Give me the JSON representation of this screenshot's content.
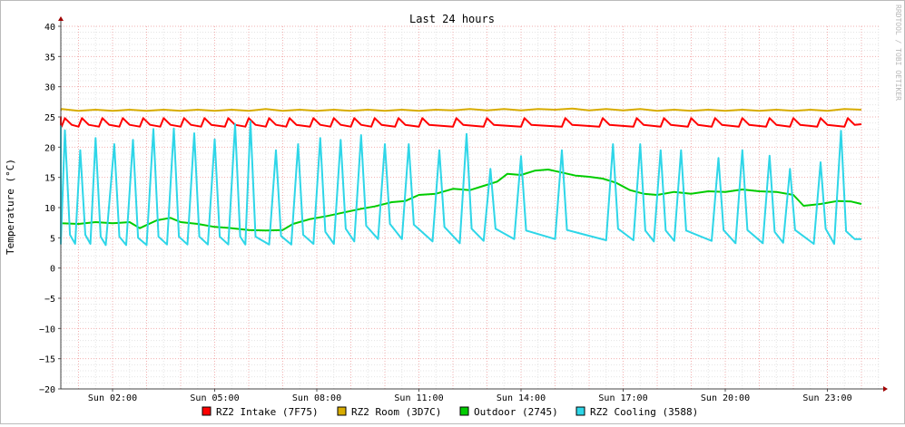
{
  "chart_data": {
    "type": "line",
    "title": "Last 24 hours",
    "ylabel": "Temperature (°C)",
    "watermark": "RRDTOOL / TOBI OETIKER",
    "ylim": [
      -20,
      40
    ],
    "y_ticks": [
      "40",
      "35",
      "30",
      "25",
      "20",
      "15",
      "10",
      "5",
      "0",
      "−5",
      "−10",
      "−15",
      "−20"
    ],
    "xlim_hours": [
      0,
      24
    ],
    "x_ticks": [
      {
        "label": "Sun 02:00",
        "hour": 2
      },
      {
        "label": "Sun 05:00",
        "hour": 5
      },
      {
        "label": "Sun 08:00",
        "hour": 8
      },
      {
        "label": "Sun 11:00",
        "hour": 11
      },
      {
        "label": "Sun 14:00",
        "hour": 14
      },
      {
        "label": "Sun 17:00",
        "hour": 17
      },
      {
        "label": "Sun 20:00",
        "hour": 20
      },
      {
        "label": "Sun 23:00",
        "hour": 23
      }
    ],
    "grid": true,
    "legend_position": "bottom",
    "series": [
      {
        "name": "RZ2 Intake (7F75)",
        "color": "#ff0000",
        "x": [
          0,
          0.1,
          0.3,
          0.5,
          0.6,
          0.8,
          1.0,
          1.1,
          1.3,
          1.6,
          1.7,
          1.9,
          2.2,
          2.3,
          2.5,
          2.8,
          2.9,
          3.1,
          3.4,
          3.5,
          3.7,
          4.0,
          4.1,
          4.3,
          4.6,
          4.7,
          4.9,
          5.3,
          5.4,
          5.6,
          5.9,
          6.0,
          6.2,
          6.5,
          6.6,
          6.8,
          7.1,
          7.2,
          7.4,
          7.8,
          7.9,
          8.1,
          8.4,
          8.5,
          8.7,
          9.0,
          9.1,
          9.3,
          9.6,
          9.7,
          9.9,
          10.3,
          10.4,
          10.6,
          11.0,
          11.1,
          11.3,
          12.0,
          12.1,
          12.3,
          12.9,
          13.0,
          13.2,
          14.0,
          14.1,
          14.3,
          15.2,
          15.3,
          15.5,
          16.3,
          16.4,
          16.6,
          17.3,
          17.4,
          17.6,
          18.1,
          18.2,
          18.4,
          18.9,
          19.0,
          19.2,
          19.6,
          19.7,
          19.9,
          20.4,
          20.5,
          20.7,
          21.2,
          21.3,
          21.5,
          21.9,
          22.0,
          22.2,
          22.7,
          22.8,
          23.0,
          23.5,
          23.6,
          23.8,
          24.0
        ],
        "y": [
          23.5,
          25,
          23.8,
          23.4,
          24.8,
          23.7,
          23.4,
          24.8,
          23.7,
          23.4,
          24.8,
          23.7,
          23.4,
          24.8,
          23.7,
          23.4,
          24.8,
          23.7,
          23.4,
          24.8,
          23.7,
          23.4,
          24.8,
          23.7,
          23.4,
          24.8,
          23.7,
          23.4,
          24.8,
          23.7,
          23.4,
          24.8,
          23.7,
          23.4,
          24.8,
          23.7,
          23.4,
          24.8,
          23.7,
          23.4,
          24.8,
          23.7,
          23.4,
          24.8,
          23.7,
          23.4,
          24.8,
          23.7,
          23.4,
          24.8,
          23.7,
          23.4,
          24.8,
          23.7,
          23.4,
          24.8,
          23.7,
          23.4,
          24.8,
          23.7,
          23.4,
          24.8,
          23.7,
          23.4,
          24.8,
          23.7,
          23.4,
          24.8,
          23.7,
          23.4,
          24.8,
          23.7,
          23.4,
          24.8,
          23.7,
          23.4,
          24.8,
          23.7,
          23.4,
          24.8,
          23.7,
          23.4,
          24.8,
          23.7,
          23.4,
          24.8,
          23.7,
          23.4,
          24.8,
          23.7,
          23.4,
          24.8,
          23.7,
          23.4,
          24.8,
          23.7,
          23.4,
          24.8,
          23.7,
          23.8
        ]
      },
      {
        "name": "RZ2 Room (3D7C)",
        "color": "#d8ac00",
        "x": [
          0,
          0.5,
          1,
          1.5,
          2,
          2.5,
          3,
          3.5,
          4,
          4.5,
          5,
          5.5,
          6,
          6.5,
          7,
          7.5,
          8,
          8.5,
          9,
          9.5,
          10,
          10.5,
          11,
          11.5,
          12,
          12.5,
          13,
          13.5,
          14,
          14.5,
          15,
          15.5,
          16,
          16.5,
          17,
          17.5,
          18,
          18.5,
          19,
          19.5,
          20,
          20.5,
          21,
          21.5,
          22,
          22.5,
          23,
          23.5,
          24
        ],
        "y": [
          26.1,
          26.3,
          26.0,
          26.2,
          26.0,
          26.2,
          26.0,
          26.2,
          26.0,
          26.2,
          26.0,
          26.2,
          26.0,
          26.3,
          26.0,
          26.2,
          26.0,
          26.2,
          26.0,
          26.2,
          26.0,
          26.2,
          26.0,
          26.2,
          26.1,
          26.3,
          26.1,
          26.3,
          26.1,
          26.3,
          26.2,
          26.4,
          26.1,
          26.3,
          26.1,
          26.3,
          26.0,
          26.2,
          26.0,
          26.2,
          26.0,
          26.2,
          26.0,
          26.2,
          26.0,
          26.2,
          26.0,
          26.3,
          26.2
        ]
      },
      {
        "name": "Outdoor (2745)",
        "color": "#00cc00",
        "x": [
          0,
          0.5,
          1,
          1.5,
          2,
          2.5,
          2.8,
          3.3,
          3.7,
          4,
          4.5,
          5,
          5.5,
          6,
          6.5,
          7,
          7.3,
          7.8,
          8.3,
          8.8,
          9.3,
          9.7,
          10.2,
          10.6,
          11,
          11.5,
          12,
          12.5,
          12.9,
          13.3,
          13.6,
          14,
          14.4,
          14.8,
          15.2,
          15.6,
          16,
          16.4,
          16.8,
          17.2,
          17.6,
          18,
          18.5,
          19,
          19.5,
          20,
          20.5,
          21,
          21.5,
          22,
          22.3,
          22.8,
          23.3,
          23.7,
          24
        ],
        "y": [
          7.8,
          7.4,
          7.3,
          7.6,
          7.4,
          7.6,
          6.6,
          7.9,
          8.3,
          7.6,
          7.3,
          6.8,
          6.6,
          6.3,
          6.2,
          6.3,
          7.3,
          8.1,
          8.6,
          9.2,
          9.8,
          10.2,
          10.9,
          11.1,
          12.1,
          12.3,
          13.1,
          12.9,
          13.6,
          14.3,
          15.6,
          15.4,
          16.1,
          16.3,
          15.8,
          15.3,
          15.1,
          14.8,
          14.1,
          12.9,
          12.3,
          12.1,
          12.6,
          12.3,
          12.7,
          12.6,
          13.0,
          12.7,
          12.6,
          12.1,
          10.3,
          10.6,
          11.1,
          11.0,
          10.6
        ]
      },
      {
        "name": "RZ2 Cooling (3588)",
        "color": "#2ed6e8",
        "x": [
          0,
          0.15,
          0.3,
          0.45,
          0.6,
          0.75,
          0.9,
          1.05,
          1.2,
          1.35,
          1.5,
          1.65,
          1.8,
          2.05,
          2.2,
          2.4,
          2.6,
          2.75,
          3.0,
          3.2,
          3.35,
          3.6,
          3.8,
          3.95,
          4.2,
          4.4,
          4.55,
          4.8,
          5.0,
          5.15,
          5.4,
          5.6,
          5.75,
          5.9,
          6.05,
          6.2,
          6.6,
          6.8,
          6.95,
          7.25,
          7.45,
          7.6,
          7.9,
          8.1,
          8.25,
          8.5,
          8.7,
          8.85,
          9.1,
          9.3,
          9.45,
          9.8,
          10.0,
          10.15,
          10.5,
          10.7,
          10.85,
          11.4,
          11.6,
          11.75,
          12.2,
          12.4,
          12.55,
          12.9,
          13.1,
          13.25,
          13.8,
          14.0,
          14.15,
          15.0,
          15.2,
          15.35,
          16.5,
          16.7,
          16.85,
          17.3,
          17.5,
          17.65,
          17.9,
          18.1,
          18.25,
          18.5,
          18.7,
          18.85,
          19.6,
          19.8,
          19.95,
          20.3,
          20.5,
          20.65,
          21.1,
          21.3,
          21.45,
          21.7,
          21.9,
          22.05,
          22.6,
          22.8,
          22.95,
          23.2,
          23.4,
          23.55,
          23.8,
          24.0
        ],
        "y": [
          4,
          23.5,
          6,
          4,
          22.8,
          5.5,
          4,
          19.5,
          5.5,
          4,
          21.5,
          5.2,
          3.8,
          20.5,
          5.2,
          3.8,
          21.2,
          5,
          3.8,
          23,
          5.2,
          3.9,
          23.1,
          5.2,
          3.9,
          22.3,
          5.2,
          3.9,
          21.3,
          5.2,
          3.9,
          23.8,
          5.2,
          3.9,
          24.3,
          5.2,
          3.9,
          19.5,
          5.3,
          3.9,
          20.5,
          5.5,
          4,
          21.5,
          6,
          4,
          21.2,
          6.5,
          4.4,
          22,
          7,
          4.8,
          20.5,
          7.3,
          4.8,
          20.5,
          7.2,
          4.4,
          19.5,
          6.8,
          4.1,
          22.2,
          6.5,
          4.5,
          16.4,
          6.5,
          4.8,
          18.5,
          6.2,
          4.8,
          19.5,
          6.3,
          4.6,
          20.5,
          6.5,
          4.6,
          20.5,
          6.2,
          4.4,
          19.5,
          6.2,
          4.5,
          19.5,
          6.2,
          4.5,
          18.2,
          6.3,
          4.1,
          19.5,
          6.3,
          4.1,
          18.6,
          6.0,
          4.2,
          16.4,
          6.3,
          4.0,
          17.5,
          6.5,
          4.0,
          22.7,
          6.1,
          4.8,
          4.8
        ]
      }
    ]
  }
}
